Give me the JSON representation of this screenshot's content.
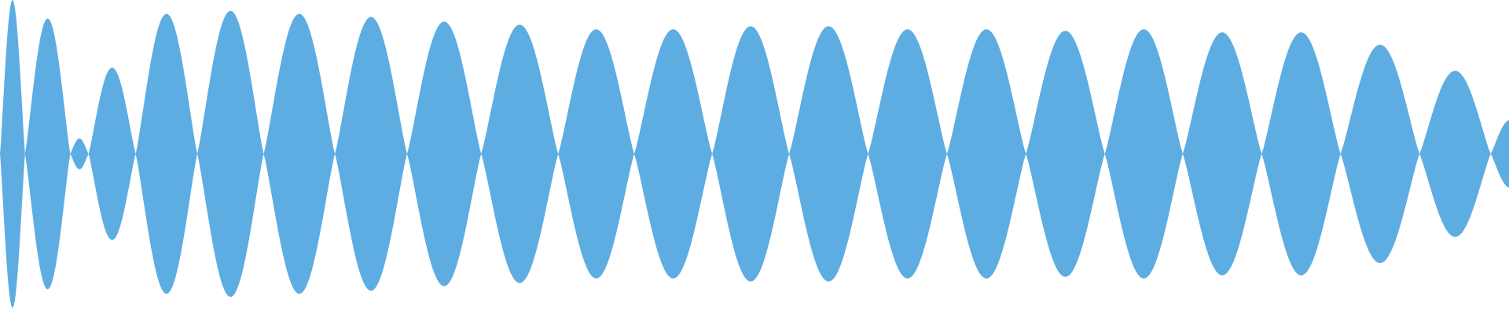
{
  "waveform": {
    "color": "#5dade2",
    "lobes": [
      {
        "duration": 26,
        "amplitude": 100
      },
      {
        "duration": 47,
        "amplitude": 88
      },
      {
        "duration": 19,
        "amplitude": 10
      },
      {
        "duration": 49,
        "amplitude": 56
      },
      {
        "duration": 64,
        "amplitude": 91
      },
      {
        "duration": 69,
        "amplitude": 93
      },
      {
        "duration": 74,
        "amplitude": 91
      },
      {
        "duration": 75,
        "amplitude": 89
      },
      {
        "duration": 77,
        "amplitude": 86
      },
      {
        "duration": 80,
        "amplitude": 84
      },
      {
        "duration": 79,
        "amplitude": 81
      },
      {
        "duration": 81,
        "amplitude": 81
      },
      {
        "duration": 80,
        "amplitude": 83
      },
      {
        "duration": 82,
        "amplitude": 83
      },
      {
        "duration": 82,
        "amplitude": 81
      },
      {
        "duration": 82,
        "amplitude": 81
      },
      {
        "duration": 82,
        "amplitude": 80
      },
      {
        "duration": 81,
        "amplitude": 81
      },
      {
        "duration": 82,
        "amplitude": 79
      },
      {
        "duration": 82,
        "amplitude": 79
      },
      {
        "duration": 82,
        "amplitude": 71
      },
      {
        "duration": 74,
        "amplitude": 54
      },
      {
        "duration": 40,
        "amplitude": 22
      }
    ]
  }
}
